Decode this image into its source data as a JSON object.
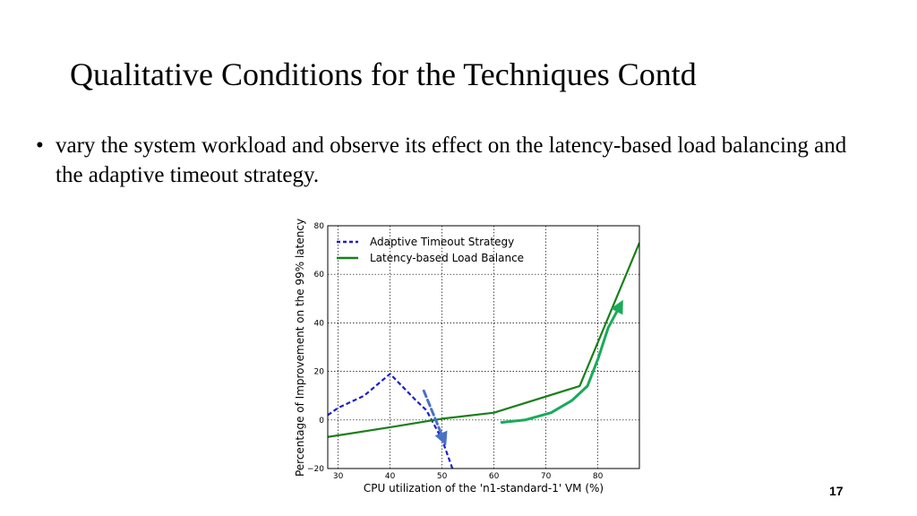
{
  "slide": {
    "title": "Qualitative Conditions for the Techniques Contd",
    "bullet_text": "vary the system workload and observe its effect on the latency-based load balancing and the adaptive timeout strategy.",
    "bullet_marker": "•",
    "page_number": "17"
  },
  "chart_data": {
    "type": "line",
    "title": "",
    "xlabel": "CPU utilization of the 'n1-standard-1' VM (%)",
    "ylabel": "Percentage of Improvement on the 99% latency",
    "xlim": [
      28,
      88
    ],
    "ylim": [
      -20,
      80
    ],
    "xticks": [
      30,
      40,
      50,
      60,
      70,
      80
    ],
    "yticks": [
      -20,
      0,
      20,
      40,
      60,
      80
    ],
    "grid": true,
    "legend_position": "top-left",
    "series": [
      {
        "name": "Adaptive Timeout Strategy",
        "style": "dashed",
        "color": "#1f1fcc",
        "x": [
          28,
          30,
          35,
          40,
          45,
          47,
          50,
          52
        ],
        "y": [
          2,
          5,
          10,
          19,
          8,
          4,
          -8,
          -20
        ]
      },
      {
        "name": "Latency-based Load Balance",
        "style": "solid",
        "color": "#1a7f1a",
        "x": [
          28,
          40,
          50,
          60,
          76.5,
          88
        ],
        "y": [
          -7,
          -3,
          0.5,
          3,
          14,
          73
        ]
      }
    ],
    "annotations": [
      {
        "type": "arrow",
        "shape": "straight-dashed",
        "color": "#4a72c4",
        "x": [
          46.5,
          50.5
        ],
        "y": [
          12,
          -9
        ]
      },
      {
        "type": "arrow",
        "shape": "curved",
        "color": "#1aaa5a",
        "x": [
          61.5,
          66,
          71,
          75,
          78,
          80,
          82,
          84.5
        ],
        "y": [
          -1,
          0,
          3,
          8,
          14,
          25,
          38,
          48
        ]
      }
    ]
  }
}
